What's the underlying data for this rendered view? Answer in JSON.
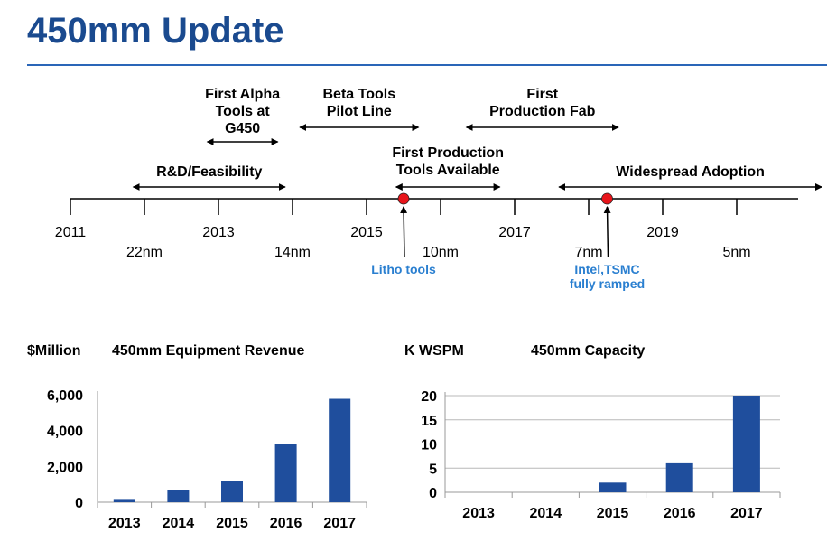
{
  "slide": {
    "title": "450mm Update"
  },
  "timeline": {
    "years": [
      {
        "label": "2011",
        "value": 2011
      },
      {
        "label": "2013",
        "value": 2013
      },
      {
        "label": "2015",
        "value": 2015
      },
      {
        "label": "2017",
        "value": 2017
      },
      {
        "label": "2019",
        "value": 2019
      }
    ],
    "nodes": [
      {
        "label": "22nm",
        "value": 2012
      },
      {
        "label": "14nm",
        "value": 2014
      },
      {
        "label": "10nm",
        "value": 2016
      },
      {
        "label": "7nm",
        "value": 2018
      },
      {
        "label": "5nm",
        "value": 2020
      }
    ],
    "phases": [
      {
        "label": "R&D/Feasibility",
        "start": 2011.85,
        "end": 2013.9
      },
      {
        "label": "First Alpha\nTools at\nG450",
        "start": 2012.85,
        "end": 2013.8
      },
      {
        "label": "Beta Tools\nPilot Line",
        "start": 2014.1,
        "end": 2015.7
      },
      {
        "label": "First Production\nTools Available",
        "start": 2015.4,
        "end": 2016.8
      },
      {
        "label": "First\nProduction Fab",
        "start": 2016.35,
        "end": 2018.4
      },
      {
        "label": "Widespread Adoption",
        "start": 2017.6,
        "end": 2021.3
      }
    ],
    "milestones": [
      {
        "label": "Litho tools",
        "value": 2015.5
      },
      {
        "label": "Intel,TSMC\nfully ramped",
        "value": 2018.25
      }
    ],
    "colors": {
      "marker": "#e8151b",
      "note": "#2a7fd0"
    }
  },
  "chart_data": [
    {
      "type": "bar",
      "unit_label": "$Million",
      "title": "450mm Equipment Revenue",
      "categories": [
        "2013",
        "2014",
        "2015",
        "2016",
        "2017"
      ],
      "values": [
        200,
        750,
        1300,
        3550,
        6350
      ],
      "yticks": [
        "0",
        "2,000",
        "4,000",
        "6,000"
      ],
      "ylim": [
        0,
        6600
      ],
      "grid": false,
      "color": "#1f4e9d"
    },
    {
      "type": "bar",
      "unit_label": "K WSPM",
      "title": "450mm Capacity",
      "categories": [
        "2013",
        "2014",
        "2015",
        "2016",
        "2017"
      ],
      "values": [
        0,
        0,
        2,
        6,
        20
      ],
      "yticks": [
        "0",
        "5",
        "10",
        "15",
        "20"
      ],
      "ylim": [
        0,
        20
      ],
      "grid": true,
      "color": "#1f4e9d"
    }
  ]
}
